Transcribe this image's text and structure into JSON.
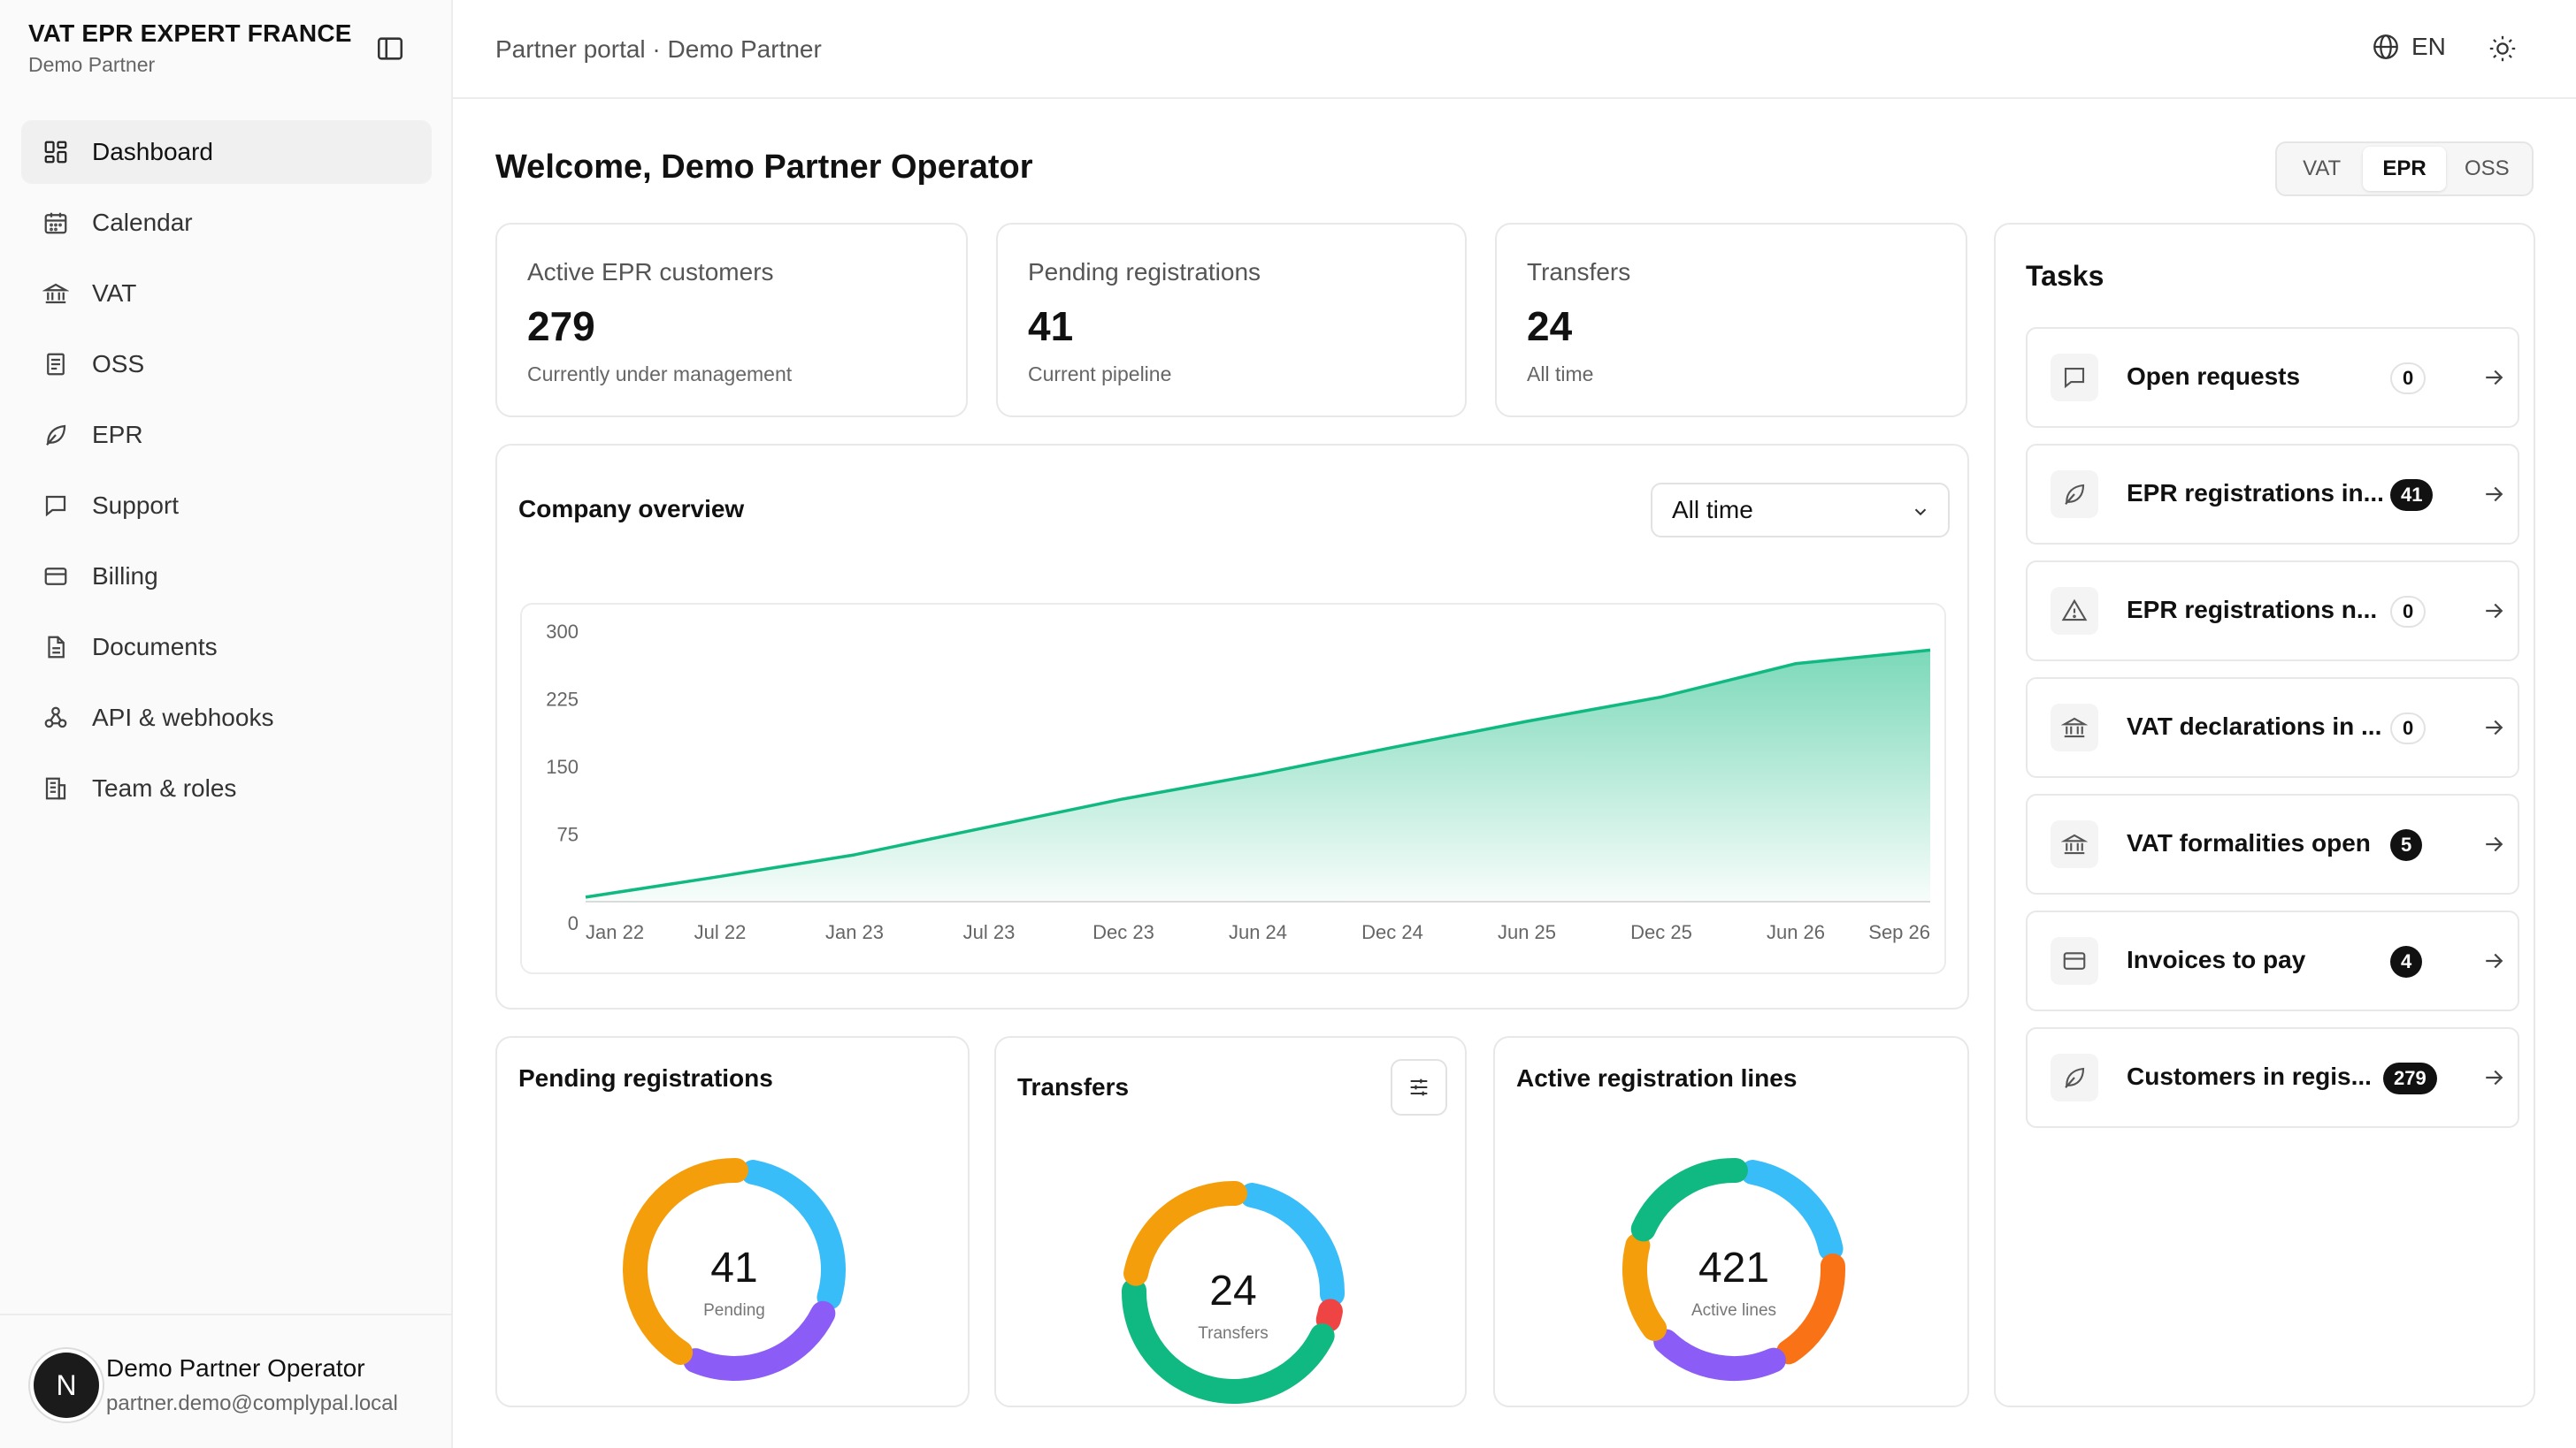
{
  "brand": {
    "title": "VAT EPR EXPERT FRANCE",
    "subtitle": "Demo Partner"
  },
  "sidebar": {
    "items": [
      {
        "label": "Dashboard",
        "icon": "dashboard-icon",
        "active": true
      },
      {
        "label": "Calendar",
        "icon": "calendar-icon"
      },
      {
        "label": "VAT",
        "icon": "bank-icon"
      },
      {
        "label": "OSS",
        "icon": "receipt-icon"
      },
      {
        "label": "EPR",
        "icon": "leaf-icon"
      },
      {
        "label": "Support",
        "icon": "chat-icon"
      },
      {
        "label": "Billing",
        "icon": "credit-card-icon"
      },
      {
        "label": "Documents",
        "icon": "document-icon"
      },
      {
        "label": "API & webhooks",
        "icon": "webhook-icon"
      },
      {
        "label": "Team & roles",
        "icon": "building-icon"
      }
    ]
  },
  "user": {
    "initial": "N",
    "name": "Demo Partner Operator",
    "email": "partner.demo@complypal.local"
  },
  "header": {
    "breadcrumb": "Partner portal · Demo Partner",
    "language": "EN"
  },
  "main": {
    "welcome": "Welcome, Demo Partner Operator",
    "segments": [
      {
        "label": "VAT",
        "active": false
      },
      {
        "label": "EPR",
        "active": true
      },
      {
        "label": "OSS",
        "active": false
      }
    ],
    "stats": [
      {
        "label": "Active EPR customers",
        "value": "279",
        "sub": "Currently under management"
      },
      {
        "label": "Pending registrations",
        "value": "41",
        "sub": "Current pipeline"
      },
      {
        "label": "Transfers",
        "value": "24",
        "sub": "All time"
      }
    ],
    "overview": {
      "title": "Company overview",
      "range": "All time"
    },
    "donuts": [
      {
        "title": "Pending registrations",
        "value": "41",
        "label": "Pending"
      },
      {
        "title": "Transfers",
        "value": "24",
        "label": "Transfers"
      },
      {
        "title": "Active registration lines",
        "value": "421",
        "label": "Active lines"
      }
    ]
  },
  "chart_data": {
    "type": "area",
    "title": "Company overview",
    "x": [
      "Jan 22",
      "Jul 22",
      "Jan 23",
      "Jul 23",
      "Dec 23",
      "Jun 24",
      "Dec 24",
      "Jun 25",
      "Dec 25",
      "Jun 26",
      "Sep 26"
    ],
    "y": [
      5,
      28,
      52,
      83,
      114,
      141,
      171,
      200,
      227,
      264,
      279
    ],
    "y_ticks": [
      "0",
      "75",
      "150",
      "225",
      "300"
    ],
    "ylim": [
      0,
      300
    ],
    "color": "#10b981"
  },
  "donut_segments": [
    [
      {
        "value": 12,
        "color": "#38bdf8"
      },
      {
        "value": 11,
        "color": "#8b5cf6"
      },
      {
        "value": 18,
        "color": "#f59e0b"
      }
    ],
    [
      {
        "value": 6,
        "color": "#38bdf8"
      },
      {
        "value": 1,
        "color": "#ef4444"
      },
      {
        "value": 11,
        "color": "#10b981"
      },
      {
        "value": 6,
        "color": "#f59e0b"
      }
    ],
    [
      {
        "value": 90,
        "color": "#38bdf8"
      },
      {
        "value": 80,
        "color": "#f97316"
      },
      {
        "value": 90,
        "color": "#8b5cf6"
      },
      {
        "value": 71,
        "color": "#f59e0b"
      },
      {
        "value": 90,
        "color": "#10b981"
      }
    ]
  ],
  "tasks": {
    "title": "Tasks",
    "items": [
      {
        "label": "Open requests",
        "count": "0",
        "icon": "chat-icon"
      },
      {
        "label": "EPR registrations in...",
        "count": "41",
        "icon": "leaf-icon"
      },
      {
        "label": "EPR registrations n...",
        "count": "0",
        "icon": "warning-icon"
      },
      {
        "label": "VAT declarations in ...",
        "count": "0",
        "icon": "bank-icon"
      },
      {
        "label": "VAT formalities open",
        "count": "5",
        "icon": "bank-icon"
      },
      {
        "label": "Invoices to pay",
        "count": "4",
        "icon": "credit-card-icon"
      },
      {
        "label": "Customers in regis...",
        "count": "279",
        "icon": "leaf-icon"
      }
    ]
  }
}
